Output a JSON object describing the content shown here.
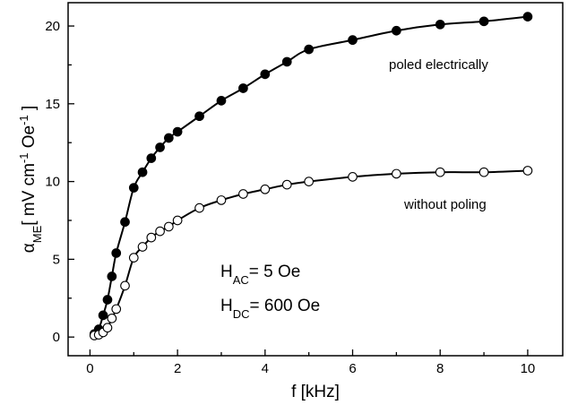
{
  "chart_data": {
    "type": "line",
    "xlabel": "f [kHz]",
    "ylabel": {
      "symbol": "α",
      "subscript": "ME",
      "text_a": "[ mV cm",
      "sup_a": "-1",
      "text_b": " Oe",
      "sup_b": "-1",
      "text_c": " ]"
    },
    "xlim": [
      -0.5,
      10.8
    ],
    "ylim": [
      -1.2,
      21.5
    ],
    "xticks": [
      0,
      2,
      4,
      6,
      8,
      10
    ],
    "yticks": [
      0,
      5,
      10,
      15,
      20
    ],
    "grid": false,
    "series": [
      {
        "name": "poled electrically",
        "marker": "filled-circle",
        "color": "#000000",
        "x": [
          0.1,
          0.2,
          0.3,
          0.4,
          0.5,
          0.6,
          0.8,
          1.0,
          1.2,
          1.4,
          1.6,
          1.8,
          2.0,
          2.5,
          3.0,
          3.5,
          4.0,
          4.5,
          5.0,
          6.0,
          7.0,
          8.0,
          9.0,
          10.0
        ],
        "y": [
          0.2,
          0.5,
          1.4,
          2.4,
          3.9,
          5.4,
          7.4,
          9.6,
          10.6,
          11.5,
          12.2,
          12.8,
          13.2,
          14.2,
          15.2,
          16.0,
          16.9,
          17.7,
          18.5,
          19.1,
          19.7,
          20.1,
          20.3,
          20.6
        ]
      },
      {
        "name": "without poling",
        "marker": "open-circle",
        "color": "#000000",
        "x": [
          0.1,
          0.2,
          0.3,
          0.4,
          0.5,
          0.6,
          0.8,
          1.0,
          1.2,
          1.4,
          1.6,
          1.8,
          2.0,
          2.5,
          3.0,
          3.5,
          4.0,
          4.5,
          5.0,
          6.0,
          7.0,
          8.0,
          9.0,
          10.0
        ],
        "y": [
          0.1,
          0.15,
          0.3,
          0.6,
          1.2,
          1.8,
          3.3,
          5.1,
          5.8,
          6.4,
          6.8,
          7.1,
          7.5,
          8.3,
          8.8,
          9.2,
          9.5,
          9.8,
          10.0,
          10.3,
          10.5,
          10.6,
          10.6,
          10.7
        ]
      }
    ],
    "annotations": {
      "hac": {
        "main": "H",
        "sub": "AC",
        "rest": "= 5 Oe"
      },
      "hdc": {
        "main": "H",
        "sub": "DC",
        "rest": "= 600 Oe"
      }
    }
  }
}
